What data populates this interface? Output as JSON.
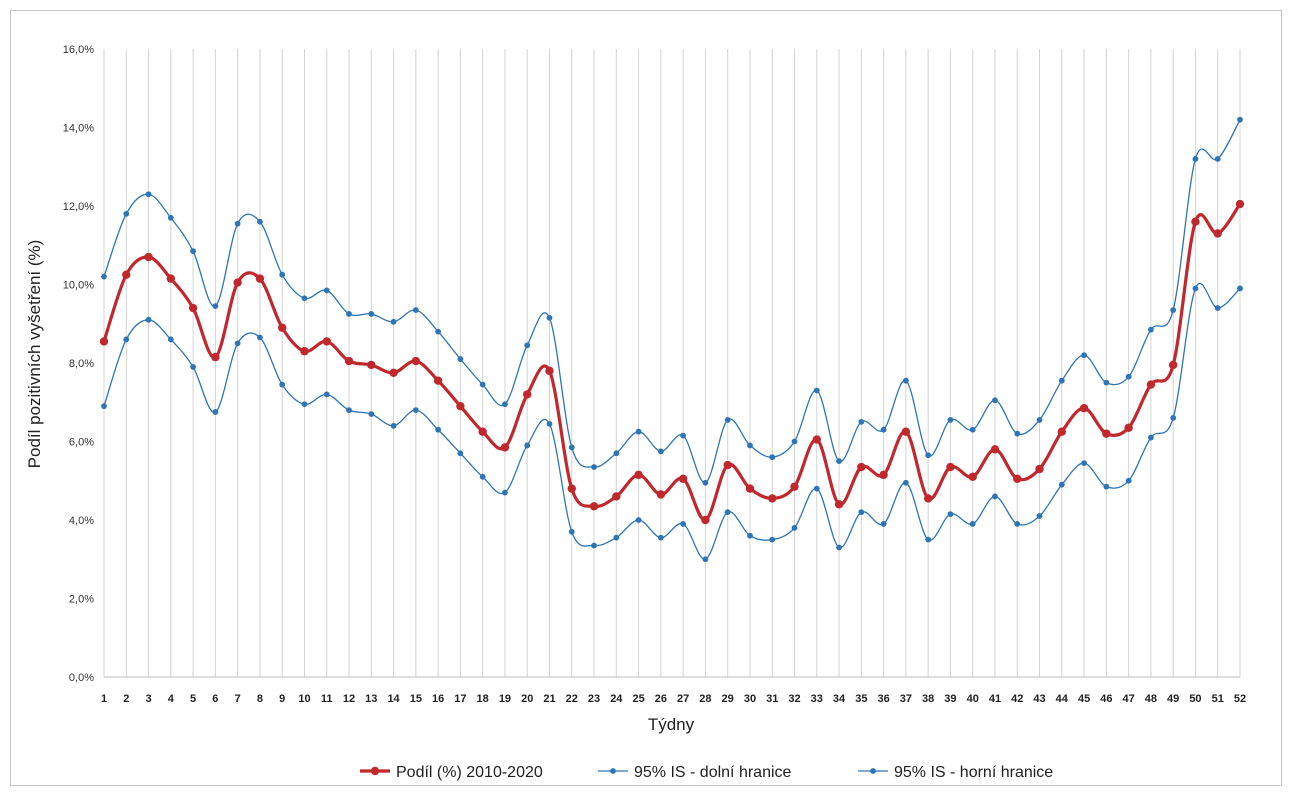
{
  "chart_data": {
    "type": "line",
    "xlabel": "Týdny",
    "ylabel": "Podíl pozitivních vyšetření (%)",
    "ylim": [
      0,
      16
    ],
    "yticks": [
      "0,0%",
      "2,0%",
      "4,0%",
      "6,0%",
      "8,0%",
      "10,0%",
      "12,0%",
      "14,0%",
      "16,0%"
    ],
    "grid": "vertical",
    "legend_position": "bottom",
    "categories": [
      "1",
      "2",
      "3",
      "4",
      "5",
      "6",
      "7",
      "8",
      "9",
      "10",
      "11",
      "12",
      "13",
      "14",
      "15",
      "16",
      "17",
      "18",
      "19",
      "20",
      "21",
      "22",
      "23",
      "24",
      "25",
      "26",
      "27",
      "28",
      "29",
      "30",
      "31",
      "32",
      "33",
      "34",
      "35",
      "36",
      "37",
      "38",
      "39",
      "40",
      "41",
      "42",
      "43",
      "44",
      "45",
      "46",
      "47",
      "48",
      "49",
      "50",
      "51",
      "52"
    ],
    "series": [
      {
        "name": "Podíl (%) 2010-2020",
        "color": "#c0282d",
        "values": [
          8.55,
          10.25,
          10.7,
          10.15,
          9.4,
          8.15,
          10.05,
          10.15,
          8.9,
          8.3,
          8.55,
          8.05,
          7.95,
          7.75,
          8.05,
          7.55,
          6.9,
          6.25,
          5.85,
          7.2,
          7.8,
          4.8,
          4.35,
          4.6,
          5.15,
          4.65,
          5.05,
          4.0,
          5.4,
          4.8,
          4.55,
          4.85,
          6.05,
          4.4,
          5.35,
          5.15,
          6.25,
          4.55,
          5.35,
          5.1,
          5.8,
          5.05,
          5.3,
          6.25,
          6.85,
          6.2,
          6.35,
          7.45,
          7.95,
          11.6,
          11.3,
          12.05
        ]
      },
      {
        "name": "95% IS - dolní hranice",
        "color": "#2e75b6",
        "values": [
          6.9,
          8.6,
          9.1,
          8.6,
          7.9,
          6.75,
          8.5,
          8.65,
          7.45,
          6.95,
          7.2,
          6.8,
          6.7,
          6.4,
          6.8,
          6.3,
          5.7,
          5.1,
          4.7,
          5.9,
          6.45,
          3.7,
          3.35,
          3.55,
          4.0,
          3.55,
          3.9,
          3.0,
          4.2,
          3.6,
          3.5,
          3.8,
          4.8,
          3.3,
          4.2,
          3.9,
          4.95,
          3.5,
          4.15,
          3.9,
          4.6,
          3.9,
          4.1,
          4.9,
          5.45,
          4.85,
          5.0,
          6.1,
          6.6,
          9.9,
          9.4,
          9.9
        ]
      },
      {
        "name": "95% IS - horní hranice",
        "color": "#2e75b6",
        "values": [
          10.2,
          11.8,
          12.3,
          11.7,
          10.85,
          9.45,
          11.55,
          11.6,
          10.25,
          9.65,
          9.85,
          9.25,
          9.25,
          9.05,
          9.35,
          8.8,
          8.1,
          7.45,
          6.95,
          8.45,
          9.15,
          5.85,
          5.35,
          5.7,
          6.25,
          5.75,
          6.15,
          4.95,
          6.55,
          5.9,
          5.6,
          6.0,
          7.3,
          5.5,
          6.5,
          6.3,
          7.55,
          5.65,
          6.55,
          6.3,
          7.05,
          6.2,
          6.55,
          7.55,
          8.2,
          7.5,
          7.65,
          8.85,
          9.35,
          13.2,
          13.2,
          14.2
        ]
      }
    ]
  }
}
